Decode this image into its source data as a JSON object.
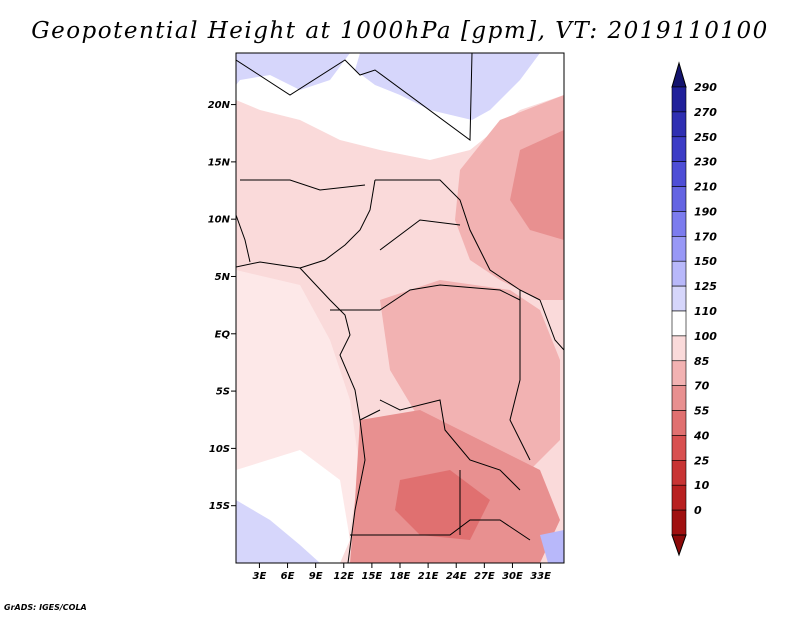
{
  "title": "Geopotential Height at 1000hPa [gpm], VT: 2019110100",
  "credit": "GrADS: IGES/COLA",
  "map": {
    "lon_labels": [
      "3E",
      "6E",
      "9E",
      "12E",
      "15E",
      "18E",
      "21E",
      "24E",
      "27E",
      "30E",
      "33E"
    ],
    "lon_values": [
      3,
      6,
      9,
      12,
      15,
      18,
      21,
      24,
      27,
      30,
      33
    ],
    "lat_labels": [
      "20N",
      "15N",
      "10N",
      "5N",
      "EQ",
      "5S",
      "10S",
      "15S"
    ],
    "lat_values": [
      20,
      15,
      10,
      5,
      0,
      -5,
      -10,
      -15
    ],
    "lon_range": [
      0.5,
      35.5
    ],
    "lat_range": [
      -20,
      24.5
    ]
  },
  "colorbar": {
    "levels": [
      "290",
      "270",
      "250",
      "230",
      "210",
      "190",
      "170",
      "150",
      "125",
      "110",
      "100",
      "85",
      "70",
      "55",
      "40",
      "25",
      "10",
      "0"
    ],
    "colors": [
      "#20209a",
      "#2f2fb2",
      "#3c3cc6",
      "#4e4ed6",
      "#6464e2",
      "#7c7cee",
      "#9898f6",
      "#b8b8fa",
      "#d6d6fb",
      "#ffffff",
      "#fadada",
      "#f2b2b2",
      "#e89090",
      "#e07070",
      "#d85050",
      "#c83434",
      "#b82020",
      "#a01010"
    ],
    "top_arrow_color": "#14146e",
    "bottom_arrow_color": "#8c0a0a"
  }
}
